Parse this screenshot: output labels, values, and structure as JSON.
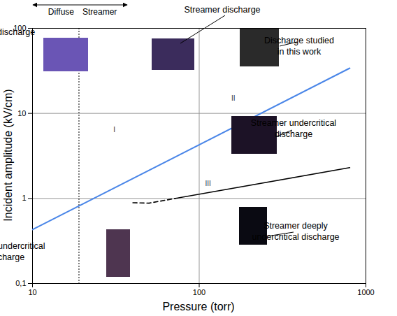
{
  "chart_data": {
    "type": "line",
    "x_label": "Pressure (torr)",
    "y_label": "Incident amplitude (kV/cm)",
    "log": true,
    "grid": true,
    "xlim": [
      10,
      1000
    ],
    "ylim": [
      0.1,
      100
    ],
    "xticks": [
      10,
      100,
      1000
    ],
    "yticks": [
      {
        "value": 0.1,
        "label": "0,1"
      },
      1,
      10,
      100
    ],
    "boundary_x": 19,
    "regions": [
      "Diffuse",
      "Streamer"
    ],
    "series": [
      {
        "name": "II",
        "color": "#4a86e8",
        "line_style": "solid",
        "x": [
          10,
          800
        ],
        "values": [
          0.43,
          34
        ]
      },
      {
        "color": "#000000",
        "line_style": "dashed",
        "x": [
          40,
          50,
          72
        ],
        "values": [
          0.89,
          0.88,
          1.0
        ]
      },
      {
        "name": "III",
        "color": "#000000",
        "line_style": "solid",
        "x": [
          72,
          800
        ],
        "values": [
          1.0,
          2.3
        ]
      }
    ],
    "annotations": [
      "I",
      "Diffuse discharge",
      "Streamer discharge",
      "Discharge studied in this work",
      "Streamer undercritical discharge",
      "Streamer deeply undercritical discharge",
      "Diffuse  undercritical discharge"
    ]
  }
}
